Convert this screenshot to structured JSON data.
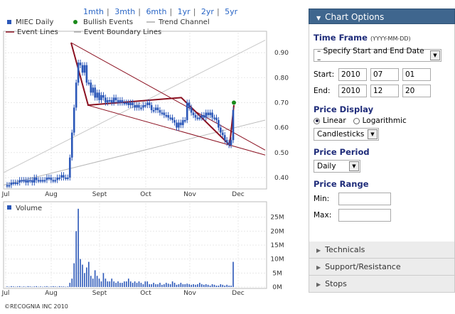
{
  "range_links": [
    "1mth",
    "3mth",
    "6mth",
    "1yr",
    "2yr",
    "5yr"
  ],
  "legend": {
    "series": "MIEC Daily",
    "bullish": "Bullish Events",
    "trend": "Trend Channel",
    "event_lines": "Event Lines",
    "boundary": "Event Boundary Lines"
  },
  "colors": {
    "candle": "#2b57b8",
    "event_line": "#8b1020",
    "event_boundary": "#bbbbbb",
    "trend_channel": "#aaaaaa",
    "bullish": "#1a8a1a",
    "panel_header": "#3f668e",
    "section_title": "#1f2c7a"
  },
  "chart_data": [
    {
      "type": "candlestick",
      "ticker": "MIEC",
      "x_ticks": [
        "Jul",
        "Aug",
        "Sept",
        "Oct",
        "Nov",
        "Dec"
      ],
      "y_ticks": [
        "0.40",
        "0.50",
        "0.60",
        "0.70",
        "0.80",
        "0.90"
      ],
      "ylim": [
        0.36,
        0.98
      ],
      "grid": true,
      "close": [
        0.37,
        0.37,
        0.38,
        0.38,
        0.38,
        0.38,
        0.39,
        0.39,
        0.39,
        0.38,
        0.39,
        0.39,
        0.38,
        0.4,
        0.39,
        0.39,
        0.39,
        0.39,
        0.39,
        0.4,
        0.4,
        0.39,
        0.39,
        0.39,
        0.4,
        0.4,
        0.41,
        0.4,
        0.4,
        0.4,
        0.48,
        0.58,
        0.68,
        0.78,
        0.86,
        0.85,
        0.82,
        0.85,
        0.78,
        0.78,
        0.74,
        0.76,
        0.72,
        0.74,
        0.71,
        0.73,
        0.72,
        0.7,
        0.71,
        0.71,
        0.7,
        0.72,
        0.71,
        0.7,
        0.71,
        0.7,
        0.7,
        0.7,
        0.69,
        0.7,
        0.69,
        0.68,
        0.69,
        0.68,
        0.68,
        0.69,
        0.69,
        0.7,
        0.69,
        0.67,
        0.67,
        0.68,
        0.67,
        0.66,
        0.66,
        0.65,
        0.65,
        0.64,
        0.64,
        0.63,
        0.62,
        0.6,
        0.62,
        0.61,
        0.63,
        0.63,
        0.7,
        0.68,
        0.66,
        0.65,
        0.64,
        0.64,
        0.64,
        0.65,
        0.64,
        0.66,
        0.65,
        0.66,
        0.64,
        0.64,
        0.63,
        0.6,
        0.58,
        0.57,
        0.55,
        0.54,
        0.53,
        0.55,
        0.67
      ],
      "event_lines": [
        [
          0.94,
          0.69,
          0.72,
          0.53,
          0.69
        ]
      ],
      "bullish_event": 0.7
    },
    {
      "type": "bar",
      "title": "Volume",
      "y_ticks": [
        "0M",
        "5M",
        "10M",
        "15M",
        "20M",
        "25M"
      ],
      "ylim": [
        0,
        30
      ],
      "grid": true,
      "values": [
        0.2,
        0.1,
        0.3,
        0.2,
        0.1,
        0.2,
        0.3,
        0.1,
        0.2,
        0.1,
        0.3,
        0.2,
        0.1,
        0.2,
        0.3,
        0.1,
        0.2,
        0.1,
        0.2,
        0.3,
        0.1,
        0.2,
        0.3,
        0.2,
        0.1,
        0.3,
        0.2,
        0.2,
        0.1,
        0.2,
        1.5,
        3.0,
        8.5,
        20,
        28,
        10,
        8,
        5,
        7,
        9,
        4,
        3,
        6,
        4,
        3,
        2,
        5,
        3,
        2,
        2,
        3,
        2,
        1.5,
        2,
        1.5,
        1.5,
        2,
        2,
        3,
        2,
        1.5,
        2,
        1.5,
        2,
        1.5,
        1,
        2,
        2,
        1,
        1,
        1.5,
        1,
        1,
        1.5,
        0.8,
        1,
        1.5,
        1.2,
        1,
        2,
        1.5,
        0.8,
        1,
        1.5,
        1,
        1,
        1.2,
        1,
        0.8,
        1,
        0.8,
        1,
        1.5,
        1,
        0.8,
        1,
        0.8,
        0.5,
        1,
        0.8,
        0.5,
        0.5,
        1,
        0.8,
        0.5,
        0.8,
        0.5,
        0.5,
        9
      ]
    }
  ],
  "copyright": "©RECOGNIA INC 2010",
  "panel": {
    "title": "Chart Options",
    "time_frame": {
      "label": "Time Frame",
      "sub": "(YYYY-MM-DD)",
      "select": "– Specify Start and End Date –"
    },
    "start": {
      "label": "Start:",
      "y": "2010",
      "m": "07",
      "d": "01"
    },
    "end": {
      "label": "End:",
      "y": "2010",
      "m": "12",
      "d": "20"
    },
    "price_display": {
      "label": "Price Display",
      "linear": "Linear",
      "log": "Logarithmic",
      "style": "Candlesticks"
    },
    "price_period": {
      "label": "Price Period",
      "value": "Daily"
    },
    "price_range": {
      "label": "Price Range",
      "min": "Min:",
      "max": "Max:"
    },
    "sections": [
      "Technicals",
      "Support/Resistance",
      "Stops"
    ]
  }
}
